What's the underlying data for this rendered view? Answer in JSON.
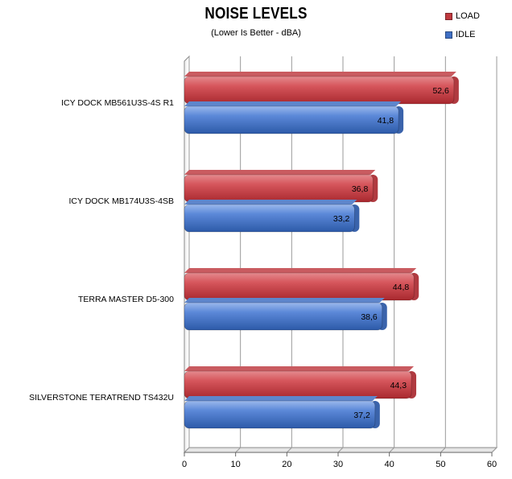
{
  "chart_data": {
    "type": "bar",
    "orientation": "horizontal",
    "title": "NOISE LEVELS",
    "subtitle": "(Lower Is Better - dBA)",
    "categories": [
      "ICY DOCK MB561U3S-4S R1",
      "ICY DOCK MB174U3S-4SB",
      "TERRA MASTER D5-300",
      "SILVERSTONE TERATREND TS432U"
    ],
    "series": [
      {
        "name": "LOAD",
        "color": "#d9545a",
        "values": [
          52.6,
          36.8,
          44.8,
          44.3
        ]
      },
      {
        "name": "IDLE",
        "color": "#5585d6",
        "values": [
          41.8,
          33.2,
          38.6,
          37.2
        ]
      }
    ],
    "xlim": [
      0,
      60
    ],
    "xticks": [
      0,
      10,
      20,
      30,
      40,
      50,
      60
    ],
    "decimal_separator": ",",
    "grid": true,
    "legend_position": "top-right"
  }
}
